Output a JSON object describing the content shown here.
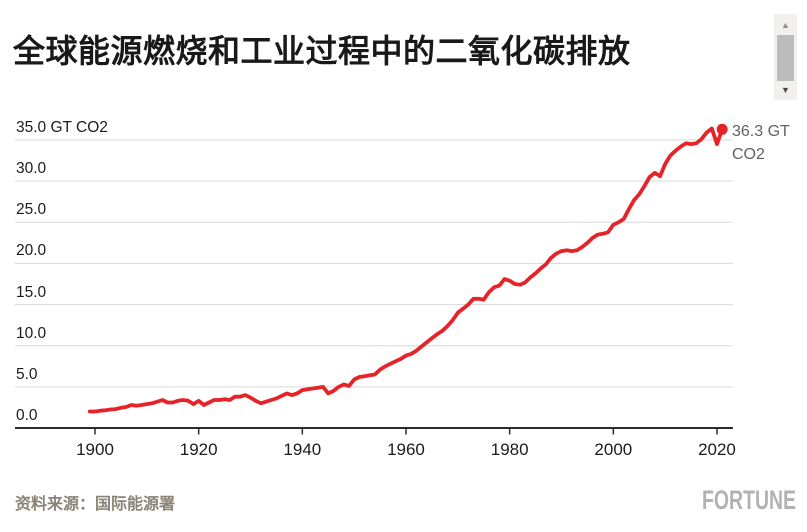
{
  "header": {
    "title": "全球能源燃烧和工业过程中的二氧化碳排放"
  },
  "annotation": {
    "line1": "36.3 GT",
    "line2": "CO2"
  },
  "footer": {
    "source": "资料来源：国际能源署",
    "brand": "FORTUNE"
  },
  "scrollbar": {
    "up_icon": "▲",
    "down_icon": "▼"
  },
  "colors": {
    "line": "#e52329",
    "grid": "#d9d9d9",
    "axis": "#2b2b2b",
    "title_text": "#191919",
    "tick_text": "#1c1c1c",
    "annotation_text": "#616161",
    "source_text": "#8a8478",
    "brand_text": "#b2b2b2",
    "scrollbar_track": "#f1f0ee",
    "scrollbar_thumb": "#bcbcbc"
  },
  "chart_data": {
    "type": "line",
    "title": "全球能源燃烧和工业过程中的二氧化碳排放",
    "xlabel": "",
    "ylabel": "GT CO2",
    "unit": "GT CO2",
    "grid": "horizontal",
    "legend": "none",
    "xlim": [
      1897,
      2023
    ],
    "ylim": [
      0,
      37
    ],
    "x_ticks": [
      1900,
      1920,
      1940,
      1960,
      1980,
      2000,
      2020
    ],
    "y_ticks": [
      0,
      5,
      10,
      15,
      20,
      25,
      30,
      35
    ],
    "y_tick_labels": [
      "0.0",
      "5.0",
      "10.0",
      "15.0",
      "20.0",
      "25.0",
      "30.0",
      "35.0 GT CO2"
    ],
    "line_color": "#e52329",
    "end_point": {
      "x": 2021,
      "y": 36.3,
      "label": "36.3 GT CO2"
    },
    "x": [
      1899,
      1900,
      1901,
      1902,
      1903,
      1904,
      1905,
      1906,
      1907,
      1908,
      1909,
      1910,
      1911,
      1912,
      1913,
      1914,
      1915,
      1916,
      1917,
      1918,
      1919,
      1920,
      1921,
      1922,
      1923,
      1924,
      1925,
      1926,
      1927,
      1928,
      1929,
      1930,
      1931,
      1932,
      1933,
      1934,
      1935,
      1936,
      1937,
      1938,
      1939,
      1940,
      1941,
      1942,
      1943,
      1944,
      1945,
      1946,
      1947,
      1948,
      1949,
      1950,
      1951,
      1952,
      1953,
      1954,
      1955,
      1956,
      1957,
      1958,
      1959,
      1960,
      1961,
      1962,
      1963,
      1964,
      1965,
      1966,
      1967,
      1968,
      1969,
      1970,
      1971,
      1972,
      1973,
      1974,
      1975,
      1976,
      1977,
      1978,
      1979,
      1980,
      1981,
      1982,
      1983,
      1984,
      1985,
      1986,
      1987,
      1988,
      1989,
      1990,
      1991,
      1992,
      1993,
      1994,
      1995,
      1996,
      1997,
      1998,
      1999,
      2000,
      2001,
      2002,
      2003,
      2004,
      2005,
      2006,
      2007,
      2008,
      2009,
      2010,
      2011,
      2012,
      2013,
      2014,
      2015,
      2016,
      2017,
      2018,
      2019,
      2020,
      2021
    ],
    "values": [
      2.0,
      2.0,
      2.1,
      2.15,
      2.25,
      2.3,
      2.45,
      2.55,
      2.8,
      2.7,
      2.8,
      2.9,
      3.0,
      3.2,
      3.4,
      3.1,
      3.1,
      3.3,
      3.4,
      3.3,
      2.9,
      3.3,
      2.8,
      3.1,
      3.4,
      3.4,
      3.5,
      3.4,
      3.8,
      3.8,
      4.0,
      3.7,
      3.3,
      3.0,
      3.2,
      3.4,
      3.6,
      3.9,
      4.2,
      4.0,
      4.2,
      4.6,
      4.7,
      4.8,
      4.9,
      5.0,
      4.2,
      4.5,
      5.0,
      5.3,
      5.1,
      5.9,
      6.2,
      6.3,
      6.4,
      6.5,
      7.1,
      7.5,
      7.8,
      8.1,
      8.4,
      8.8,
      9.0,
      9.4,
      9.9,
      10.4,
      10.9,
      11.4,
      11.8,
      12.4,
      13.1,
      14.0,
      14.5,
      15.0,
      15.7,
      15.7,
      15.6,
      16.5,
      17.1,
      17.3,
      18.1,
      17.9,
      17.5,
      17.4,
      17.7,
      18.3,
      18.8,
      19.4,
      19.9,
      20.7,
      21.2,
      21.5,
      21.6,
      21.5,
      21.6,
      22.0,
      22.5,
      23.1,
      23.5,
      23.6,
      23.8,
      24.7,
      25.0,
      25.4,
      26.6,
      27.7,
      28.4,
      29.4,
      30.5,
      31.0,
      30.6,
      32.1,
      33.1,
      33.7,
      34.2,
      34.6,
      34.5,
      34.6,
      35.1,
      35.9,
      36.4,
      34.5,
      36.3
    ]
  }
}
